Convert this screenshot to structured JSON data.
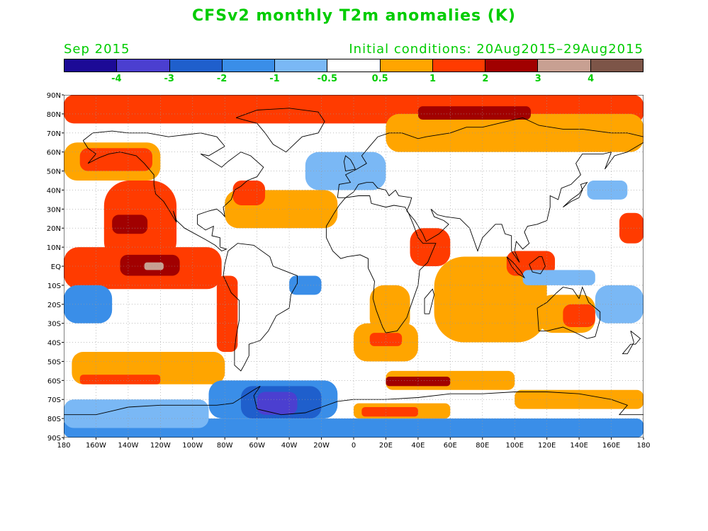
{
  "title": "CFSv2 monthly T2m anomalies (K)",
  "valid_month": "Sep 2015",
  "initial_conditions": "Initial conditions: 20Aug2015–29Aug2015",
  "colorbar": {
    "colors": [
      "#1c0a96",
      "#4b3fd0",
      "#1f5fcc",
      "#3a8ee8",
      "#7ab8f5",
      "#ffffff",
      "#ffa500",
      "#ff3b00",
      "#a10000",
      "#c8a092",
      "#7d5548"
    ],
    "boundaries": [
      "-4",
      "-3",
      "-2",
      "-1",
      "-0.5",
      "0.5",
      "1",
      "2",
      "3",
      "4"
    ]
  },
  "lat_labels": [
    "90N",
    "80N",
    "70N",
    "60N",
    "50N",
    "40N",
    "30N",
    "20N",
    "10N",
    "EQ",
    "10S",
    "20S",
    "30S",
    "40S",
    "50S",
    "60S",
    "70S",
    "80S",
    "90S"
  ],
  "lon_labels": [
    "180",
    "160W",
    "140W",
    "120W",
    "100W",
    "80W",
    "60W",
    "40W",
    "20W",
    "0",
    "20E",
    "40E",
    "60E",
    "80E",
    "100E",
    "120E",
    "140E",
    "160E",
    "180"
  ],
  "anomaly_regions": [
    {
      "label": "arctic-warm",
      "lon_min": -180,
      "lon_max": 180,
      "lat_min": 75,
      "lat_max": 90,
      "class": "2"
    },
    {
      "label": "arctic-east-warm",
      "lon_min": 20,
      "lon_max": 180,
      "lat_min": 60,
      "lat_max": 80,
      "class": "1"
    },
    {
      "label": "siberia-strong",
      "lon_min": 40,
      "lon_max": 110,
      "lat_min": 77,
      "lat_max": 84,
      "class": "3"
    },
    {
      "label": "north-pacific-warm",
      "lon_min": -180,
      "lon_max": -120,
      "lat_min": 45,
      "lat_max": 65,
      "class": "1"
    },
    {
      "label": "gulf-alaska-warm",
      "lon_min": -170,
      "lon_max": -125,
      "lat_min": 50,
      "lat_max": 62,
      "class": "2"
    },
    {
      "label": "ne-pacific-warm",
      "lon_min": -155,
      "lon_max": -110,
      "lat_min": 0,
      "lat_max": 45,
      "class": "2"
    },
    {
      "label": "ne-pacific-strong",
      "lon_min": -150,
      "lon_max": -128,
      "lat_min": 17,
      "lat_max": 27,
      "class": "3"
    },
    {
      "label": "enso-region-warm",
      "lon_min": -180,
      "lon_max": -82,
      "lat_min": -12,
      "lat_max": 10,
      "class": "2"
    },
    {
      "label": "enso-core-strong",
      "lon_min": -145,
      "lon_max": -108,
      "lat_min": -5,
      "lat_max": 6,
      "class": "3"
    },
    {
      "label": "enso-peak",
      "lon_min": -130,
      "lon_max": -118,
      "lat_min": -2,
      "lat_max": 2,
      "class": "4"
    },
    {
      "label": "peru-coast-warm",
      "lon_min": -85,
      "lon_max": -72,
      "lat_min": -45,
      "lat_max": -5,
      "class": "2"
    },
    {
      "label": "north-atlantic-warm",
      "lon_min": -80,
      "lon_max": -10,
      "lat_min": 20,
      "lat_max": 40,
      "class": "1"
    },
    {
      "label": "west-atlantic-warm",
      "lon_min": -75,
      "lon_max": -55,
      "lat_min": 32,
      "lat_max": 45,
      "class": "2"
    },
    {
      "label": "west-pacific-cool",
      "lon_min": -180,
      "lon_max": -150,
      "lat_min": -30,
      "lat_max": -10,
      "class": "-1"
    },
    {
      "label": "southern-ocean-warm",
      "lon_min": -175,
      "lon_max": -80,
      "lat_min": -62,
      "lat_max": -45,
      "class": "1"
    },
    {
      "label": "southern-ocean-core",
      "lon_min": -170,
      "lon_max": -120,
      "lat_min": -62,
      "lat_max": -57,
      "class": "2"
    },
    {
      "label": "south-atlantic-warm",
      "lon_min": 0,
      "lon_max": 40,
      "lat_min": -50,
      "lat_max": -30,
      "class": "1"
    },
    {
      "label": "south-atlantic-core",
      "lon_min": 10,
      "lon_max": 30,
      "lat_min": -42,
      "lat_max": -35,
      "class": "2"
    },
    {
      "label": "southern-indian-warm",
      "lon_min": 20,
      "lon_max": 100,
      "lat_min": -65,
      "lat_max": -55,
      "class": "1"
    },
    {
      "label": "southern-indian-strong",
      "lon_min": 20,
      "lon_max": 60,
      "lat_min": -63,
      "lat_max": -58,
      "class": "3"
    },
    {
      "label": "indian-ocean-warm",
      "lon_min": 50,
      "lon_max": 120,
      "lat_min": -40,
      "lat_max": 5,
      "class": "1"
    },
    {
      "label": "arabian-warm",
      "lon_min": 35,
      "lon_max": 60,
      "lat_min": 0,
      "lat_max": 20,
      "class": "2"
    },
    {
      "label": "maritime-warm",
      "lon_min": 95,
      "lon_max": 125,
      "lat_min": -5,
      "lat_max": 8,
      "class": "2"
    },
    {
      "label": "australia-warm",
      "lon_min": 115,
      "lon_max": 150,
      "lat_min": -35,
      "lat_max": -15,
      "class": "1"
    },
    {
      "label": "east-australia-hot",
      "lon_min": 130,
      "lon_max": 150,
      "lat_min": -32,
      "lat_max": -20,
      "class": "2"
    },
    {
      "label": "sw-pacific-cool",
      "lon_min": 150,
      "lon_max": 180,
      "lat_min": -30,
      "lat_max": -10,
      "class": "-0.5"
    },
    {
      "label": "central-pacific-warm",
      "lon_min": 165,
      "lon_max": 180,
      "lat_min": 12,
      "lat_max": 28,
      "class": "2"
    },
    {
      "label": "weddell-cool",
      "lon_min": -90,
      "lon_max": -10,
      "lat_min": -80,
      "lat_max": -60,
      "class": "-1"
    },
    {
      "label": "weddell-core",
      "lon_min": -70,
      "lon_max": -20,
      "lat_min": -80,
      "lat_max": -63,
      "class": "-2"
    },
    {
      "label": "weddell-peak",
      "lon_min": -60,
      "lon_max": -35,
      "lat_min": -78,
      "lat_max": -66,
      "class": "-3"
    },
    {
      "label": "antarctic-coast-cool",
      "lon_min": -180,
      "lon_max": 180,
      "lat_min": -90,
      "lat_max": -80,
      "class": "-1"
    },
    {
      "label": "west-antarctic-cool",
      "lon_min": -180,
      "lon_max": -90,
      "lat_min": -85,
      "lat_max": -70,
      "class": "-0.5"
    },
    {
      "label": "east-antarctic-warm",
      "lon_min": 0,
      "lon_max": 60,
      "lat_min": -80,
      "lat_max": -72,
      "class": "1"
    },
    {
      "label": "east-antarctic-core",
      "lon_min": 5,
      "lon_max": 40,
      "lat_min": -79,
      "lat_max": -74,
      "class": "2"
    },
    {
      "label": "south-indian-cool",
      "lon_min": 100,
      "lon_max": 180,
      "lat_min": -75,
      "lat_max": -65,
      "class": "1"
    },
    {
      "label": "east-pacific-cool",
      "lon_min": -40,
      "lon_max": -20,
      "lat_min": -15,
      "lat_max": -5,
      "class": "-1"
    },
    {
      "label": "siberia-cool",
      "lon_min": -30,
      "lon_max": 20,
      "lat_min": 40,
      "lat_max": 60,
      "class": "-0.5"
    },
    {
      "label": "se-asia-cool",
      "lon_min": 145,
      "lon_max": 170,
      "lat_min": 35,
      "lat_max": 45,
      "class": "-0.5"
    },
    {
      "label": "indonesia-cool",
      "lon_min": 105,
      "lon_max": 150,
      "lat_min": -10,
      "lat_max": -2,
      "class": "-0.5"
    },
    {
      "label": "africa-south-warm",
      "lon_min": 10,
      "lon_max": 35,
      "lat_min": -35,
      "lat_max": -10,
      "class": "1"
    }
  ]
}
